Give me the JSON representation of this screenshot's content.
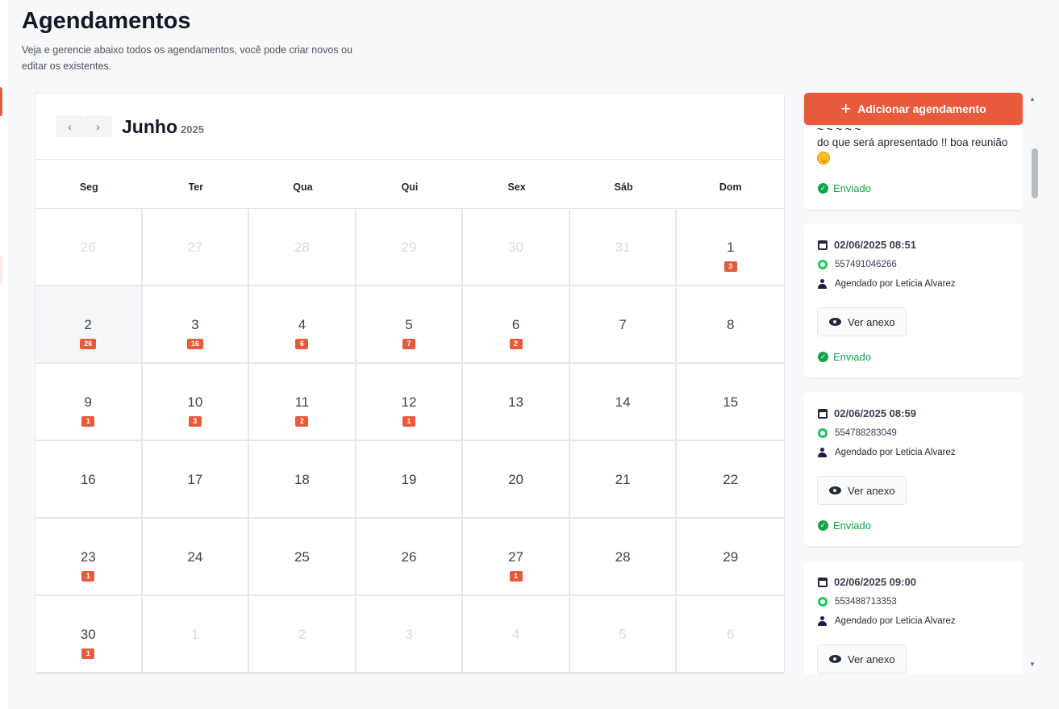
{
  "header": {
    "title": "Agendamentos",
    "subtitle": "Veja e gerencie abaixo todos os agendamentos, você pode criar novos ou editar os existentes."
  },
  "calendar": {
    "month": "Junho",
    "year": "2025",
    "weekdays": [
      "Seg",
      "Ter",
      "Qua",
      "Qui",
      "Sex",
      "Sáb",
      "Dom"
    ],
    "days": [
      {
        "n": "26",
        "other": true,
        "count": ""
      },
      {
        "n": "27",
        "other": true,
        "count": ""
      },
      {
        "n": "28",
        "other": true,
        "count": ""
      },
      {
        "n": "29",
        "other": true,
        "count": ""
      },
      {
        "n": "30",
        "other": true,
        "count": ""
      },
      {
        "n": "31",
        "other": true,
        "count": ""
      },
      {
        "n": "1",
        "other": false,
        "count": "3"
      },
      {
        "n": "2",
        "other": false,
        "count": "26",
        "today": true
      },
      {
        "n": "3",
        "other": false,
        "count": "16"
      },
      {
        "n": "4",
        "other": false,
        "count": "6"
      },
      {
        "n": "5",
        "other": false,
        "count": "7"
      },
      {
        "n": "6",
        "other": false,
        "count": "2"
      },
      {
        "n": "7",
        "other": false,
        "count": ""
      },
      {
        "n": "8",
        "other": false,
        "count": ""
      },
      {
        "n": "9",
        "other": false,
        "count": "1"
      },
      {
        "n": "10",
        "other": false,
        "count": "3"
      },
      {
        "n": "11",
        "other": false,
        "count": "2"
      },
      {
        "n": "12",
        "other": false,
        "count": "1"
      },
      {
        "n": "13",
        "other": false,
        "count": ""
      },
      {
        "n": "14",
        "other": false,
        "count": ""
      },
      {
        "n": "15",
        "other": false,
        "count": ""
      },
      {
        "n": "16",
        "other": false,
        "count": ""
      },
      {
        "n": "17",
        "other": false,
        "count": ""
      },
      {
        "n": "18",
        "other": false,
        "count": ""
      },
      {
        "n": "19",
        "other": false,
        "count": ""
      },
      {
        "n": "20",
        "other": false,
        "count": ""
      },
      {
        "n": "21",
        "other": false,
        "count": ""
      },
      {
        "n": "22",
        "other": false,
        "count": ""
      },
      {
        "n": "23",
        "other": false,
        "count": "1"
      },
      {
        "n": "24",
        "other": false,
        "count": ""
      },
      {
        "n": "25",
        "other": false,
        "count": ""
      },
      {
        "n": "26",
        "other": false,
        "count": ""
      },
      {
        "n": "27",
        "other": false,
        "count": "1"
      },
      {
        "n": "28",
        "other": false,
        "count": ""
      },
      {
        "n": "29",
        "other": false,
        "count": ""
      },
      {
        "n": "30",
        "other": false,
        "count": "1"
      },
      {
        "n": "1",
        "other": true,
        "count": ""
      },
      {
        "n": "2",
        "other": true,
        "count": ""
      },
      {
        "n": "3",
        "other": true,
        "count": ""
      },
      {
        "n": "4",
        "other": true,
        "count": ""
      },
      {
        "n": "5",
        "other": true,
        "count": ""
      },
      {
        "n": "6",
        "other": true,
        "count": ""
      }
    ]
  },
  "actions": {
    "add_label": "Adicionar agendamento",
    "add_icon": "plus-icon"
  },
  "appointments": {
    "partial": {
      "cut_text": "~ ~ ~ ~ ~",
      "text": "do que será apresentado !! boa reunião",
      "emoji": "smiling-face",
      "status": "Enviado"
    },
    "items": [
      {
        "datetime": "02/06/2025 08:51",
        "phone": "557491046266",
        "by": "Agendado por Leticia Alvarez",
        "attach_label": "Ver anexo",
        "status": "Enviado"
      },
      {
        "datetime": "02/06/2025 08:59",
        "phone": "554788283049",
        "by": "Agendado por Leticia Alvarez",
        "attach_label": "Ver anexo",
        "status": "Enviado"
      },
      {
        "datetime": "02/06/2025 09:00",
        "phone": "553488713353",
        "by": "Agendado por Leticia Alvarez",
        "attach_label": "Ver anexo",
        "status": ""
      }
    ]
  },
  "colors": {
    "accent": "#e85a3c",
    "success": "#16a34a",
    "muted_day": "#d8dbe0"
  }
}
